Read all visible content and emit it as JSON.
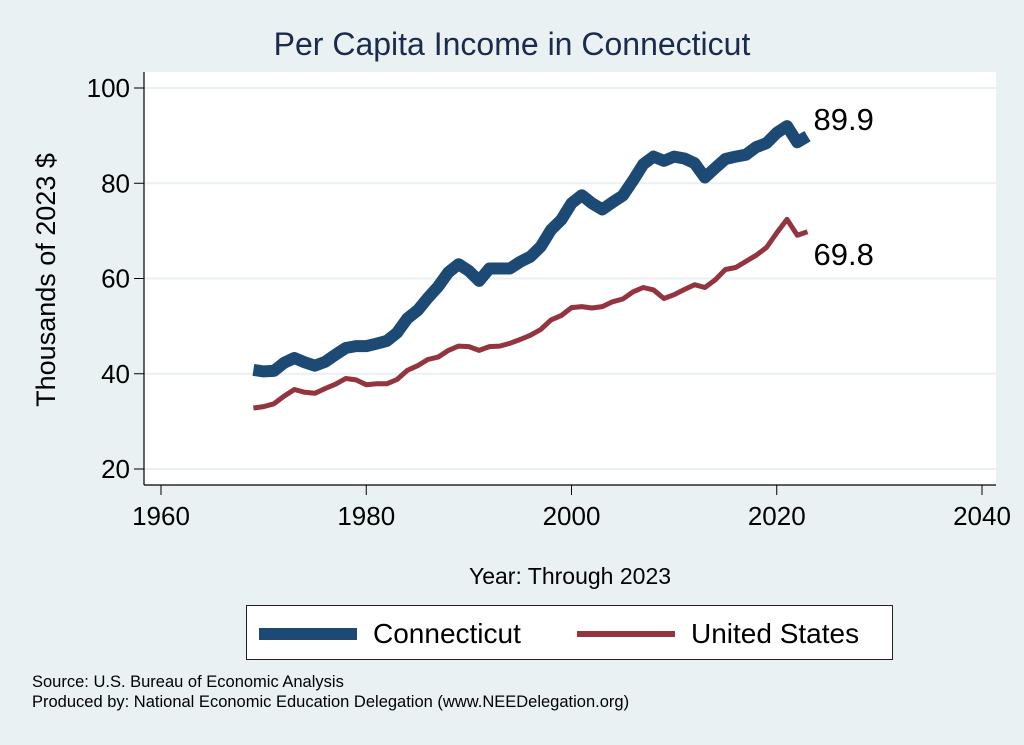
{
  "chart_data": {
    "type": "line",
    "title": "Per Capita Income in Connecticut",
    "xlabel": "Year: Through 2023",
    "ylabel": "Thousands of 2023 $",
    "xlim": [
      1958.5,
      2041.5
    ],
    "ylim": [
      16.6,
      103.5
    ],
    "xticks": [
      1960,
      1980,
      2000,
      2020,
      2040
    ],
    "yticks": [
      20,
      40,
      60,
      80,
      100
    ],
    "grid": true,
    "legend_position": "bottom",
    "x": [
      1969,
      1970,
      1971,
      1972,
      1973,
      1974,
      1975,
      1976,
      1977,
      1978,
      1979,
      1980,
      1981,
      1982,
      1983,
      1984,
      1985,
      1986,
      1987,
      1988,
      1989,
      1990,
      1991,
      1992,
      1993,
      1994,
      1995,
      1996,
      1997,
      1998,
      1999,
      2000,
      2001,
      2002,
      2003,
      2004,
      2005,
      2006,
      2007,
      2008,
      2009,
      2010,
      2011,
      2012,
      2013,
      2014,
      2015,
      2016,
      2017,
      2018,
      2019,
      2020,
      2021,
      2022,
      2023
    ],
    "series": [
      {
        "name": "Connecticut",
        "color": "#1c4a74",
        "end_label": "89.9",
        "values": [
          40.8,
          40.5,
          40.6,
          42.3,
          43.3,
          42.4,
          41.7,
          42.5,
          44.0,
          45.4,
          45.8,
          45.8,
          46.3,
          46.9,
          48.6,
          51.6,
          53.3,
          55.9,
          58.3,
          61.3,
          63.0,
          61.6,
          59.5,
          62.1,
          62.1,
          62.1,
          63.5,
          64.6,
          66.7,
          70.2,
          72.3,
          75.8,
          77.5,
          75.8,
          74.5,
          76.0,
          77.4,
          80.6,
          84.0,
          85.6,
          84.7,
          85.6,
          85.2,
          84.2,
          81.2,
          83.2,
          85.1,
          85.6,
          86.0,
          87.6,
          88.4,
          90.6,
          92.0,
          88.6,
          89.9
        ]
      },
      {
        "name": "United States",
        "color": "#93343f",
        "end_label": "69.8",
        "values": [
          32.8,
          33.1,
          33.7,
          35.3,
          36.7,
          36.1,
          35.9,
          36.9,
          37.8,
          39.0,
          38.7,
          37.7,
          37.9,
          37.9,
          38.8,
          40.7,
          41.7,
          43.0,
          43.5,
          44.9,
          45.8,
          45.7,
          44.9,
          45.7,
          45.8,
          46.4,
          47.2,
          48.1,
          49.3,
          51.3,
          52.2,
          53.9,
          54.1,
          53.8,
          54.1,
          55.1,
          55.7,
          57.2,
          58.1,
          57.6,
          55.8,
          56.6,
          57.7,
          58.7,
          58.1,
          59.7,
          61.9,
          62.3,
          63.6,
          64.9,
          66.5,
          69.6,
          72.4,
          69.1,
          69.8
        ]
      }
    ]
  },
  "notes": {
    "source": "Source: U.S. Bureau of Economic Analysis",
    "produced_by": "Produced by: National Economic Education Delegation (www.NEEDelegation.org)"
  }
}
